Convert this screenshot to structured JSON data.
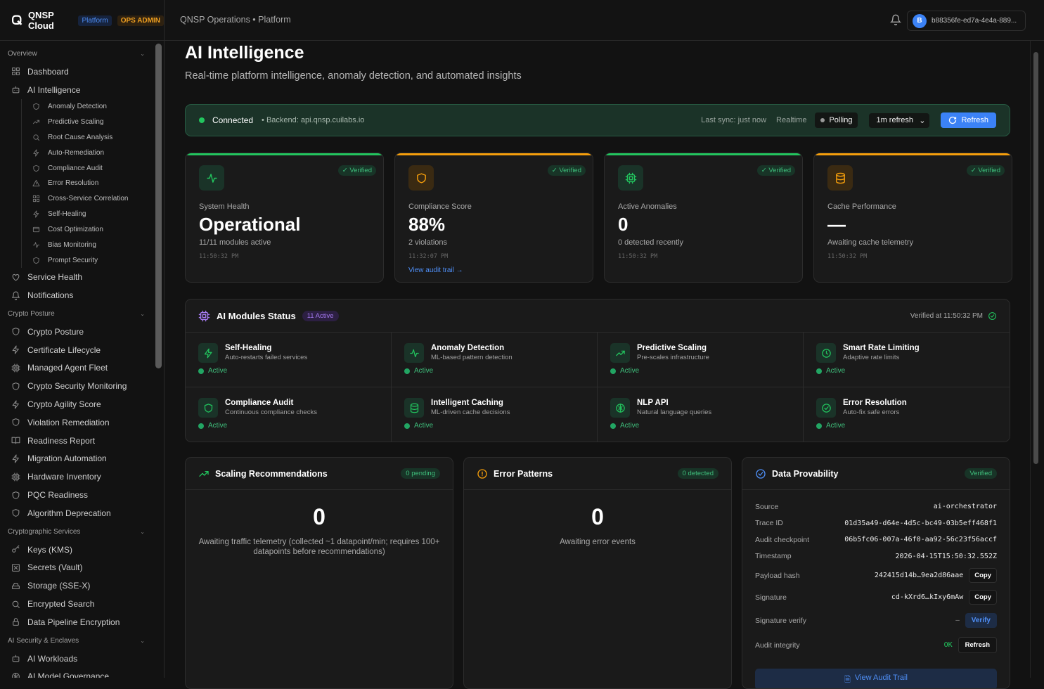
{
  "topbar": {
    "brand": "QNSP Cloud",
    "badge_platform": "Platform",
    "badge_admin": "OPS ADMIN",
    "breadcrumb": "QNSP Operations • Platform",
    "user_initial": "B",
    "user_id": "b88356fe-ed7a-4e4a-889..."
  },
  "sidebar": [
    {
      "section": "Overview",
      "items": [
        {
          "label": "Dashboard",
          "icon": "grid"
        },
        {
          "label": "AI Intelligence",
          "icon": "bot",
          "children": [
            {
              "label": "Anomaly Detection",
              "icon": "shield"
            },
            {
              "label": "Predictive Scaling",
              "icon": "trend"
            },
            {
              "label": "Root Cause Analysis",
              "icon": "search"
            },
            {
              "label": "Auto-Remediation",
              "icon": "bolt"
            },
            {
              "label": "Compliance Audit",
              "icon": "shield"
            },
            {
              "label": "Error Resolution",
              "icon": "alert"
            },
            {
              "label": "Cross-Service Correlation",
              "icon": "grid"
            },
            {
              "label": "Self-Healing",
              "icon": "bolt"
            },
            {
              "label": "Cost Optimization",
              "icon": "card"
            },
            {
              "label": "Bias Monitoring",
              "icon": "pulse"
            },
            {
              "label": "Prompt Security",
              "icon": "shield"
            }
          ]
        },
        {
          "label": "Service Health",
          "icon": "heart"
        },
        {
          "label": "Notifications",
          "icon": "bell"
        }
      ]
    },
    {
      "section": "Crypto Posture",
      "items": [
        {
          "label": "Crypto Posture",
          "icon": "shield"
        },
        {
          "label": "Certificate Lifecycle",
          "icon": "bolt"
        },
        {
          "label": "Managed Agent Fleet",
          "icon": "chip"
        },
        {
          "label": "Crypto Security Monitoring",
          "icon": "shield"
        },
        {
          "label": "Crypto Agility Score",
          "icon": "bolt"
        },
        {
          "label": "Violation Remediation",
          "icon": "shield"
        },
        {
          "label": "Readiness Report",
          "icon": "book"
        },
        {
          "label": "Migration Automation",
          "icon": "bolt"
        },
        {
          "label": "Hardware Inventory",
          "icon": "chip"
        },
        {
          "label": "PQC Readiness",
          "icon": "shield"
        },
        {
          "label": "Algorithm Deprecation",
          "icon": "shield"
        }
      ]
    },
    {
      "section": "Cryptographic Services",
      "items": [
        {
          "label": "Keys (KMS)",
          "icon": "key"
        },
        {
          "label": "Secrets (Vault)",
          "icon": "box"
        },
        {
          "label": "Storage (SSE-X)",
          "icon": "drive"
        },
        {
          "label": "Encrypted Search",
          "icon": "search"
        },
        {
          "label": "Data Pipeline Encryption",
          "icon": "lock"
        }
      ]
    },
    {
      "section": "AI Security & Enclaves",
      "items": [
        {
          "label": "AI Workloads",
          "icon": "bot"
        },
        {
          "label": "AI Model Governance",
          "icon": "brain"
        }
      ]
    }
  ],
  "page": {
    "title": "AI Intelligence",
    "subtitle": "Real-time platform intelligence, anomaly detection, and automated insights"
  },
  "status": {
    "connected": "Connected",
    "backend": "• Backend: api.qnsp.cuilabs.io",
    "last_sync": "Last sync: just now",
    "realtime": "Realtime",
    "polling": "Polling",
    "refresh_interval": "1m refresh",
    "refresh_button": "Refresh"
  },
  "cards": [
    {
      "label": "System Health",
      "value": "Operational",
      "sub": "11/11 modules active",
      "time": "11:50:32 PM",
      "badge": "Verified",
      "icon": "pulse",
      "accent": "#22c55e"
    },
    {
      "label": "Compliance Score",
      "value": "88%",
      "sub": "2 violations",
      "time": "11:32:07 PM",
      "badge": "Verified",
      "icon": "shield",
      "accent": "#f59e0b",
      "link": "View audit trail →"
    },
    {
      "label": "Active Anomalies",
      "value": "0",
      "sub": "0 detected recently",
      "time": "11:50:32 PM",
      "badge": "Verified",
      "icon": "chip",
      "accent": "#22c55e"
    },
    {
      "label": "Cache Performance",
      "value": "—",
      "sub": "Awaiting cache telemetry",
      "time": "11:50:32 PM",
      "badge": "Verified",
      "icon": "db",
      "accent": "#f59e0b"
    }
  ],
  "modules": {
    "title": "AI Modules Status",
    "badge": "11 Active",
    "verified_at": "Verified at 11:50:32 PM",
    "items": [
      {
        "name": "Self-Healing",
        "desc": "Auto-restarts failed services",
        "status": "Active",
        "icon": "bolt"
      },
      {
        "name": "Anomaly Detection",
        "desc": "ML-based pattern detection",
        "status": "Active",
        "icon": "pulse"
      },
      {
        "name": "Predictive Scaling",
        "desc": "Pre-scales infrastructure",
        "status": "Active",
        "icon": "trend"
      },
      {
        "name": "Smart Rate Limiting",
        "desc": "Adaptive rate limits",
        "status": "Active",
        "icon": "clock"
      },
      {
        "name": "Compliance Audit",
        "desc": "Continuous compliance checks",
        "status": "Active",
        "icon": "shield"
      },
      {
        "name": "Intelligent Caching",
        "desc": "ML-driven cache decisions",
        "status": "Active",
        "icon": "db"
      },
      {
        "name": "NLP API",
        "desc": "Natural language queries",
        "status": "Active",
        "icon": "brain"
      },
      {
        "name": "Error Resolution",
        "desc": "Auto-fix safe errors",
        "status": "Active",
        "icon": "checkc"
      }
    ]
  },
  "scaling": {
    "title": "Scaling Recommendations",
    "badge": "0 pending",
    "count": "0",
    "text": "Awaiting traffic telemetry (collected ~1 datapoint/min; requires 100+ datapoints before recommendations)"
  },
  "errors": {
    "title": "Error Patterns",
    "badge": "0 detected",
    "count": "0",
    "text": "Awaiting error events"
  },
  "provability": {
    "title": "Data Provability",
    "badge": "Verified",
    "rows": {
      "source": {
        "k": "Source",
        "v": "ai-orchestrator"
      },
      "trace": {
        "k": "Trace ID",
        "v": "01d35a49-d64e-4d5c-bc49-03b5eff468f1"
      },
      "checkpoint": {
        "k": "Audit checkpoint",
        "v": "06b5fc06-007a-46f0-aa92-56c23f56accf"
      },
      "timestamp": {
        "k": "Timestamp",
        "v": "2026-04-15T15:50:32.552Z"
      },
      "payload": {
        "k": "Payload hash",
        "v": "242415d14b…9ea2d86aae",
        "btn": "Copy"
      },
      "signature": {
        "k": "Signature",
        "v": "cd-kXrd6…kIxy6mAw",
        "btn": "Copy"
      },
      "sigverify": {
        "k": "Signature verify",
        "v": "–",
        "btn": "Verify"
      },
      "integrity": {
        "k": "Audit integrity",
        "v": "OK",
        "btn": "Refresh"
      }
    },
    "view_trail": "View Audit Trail"
  },
  "colors": {
    "accent": "#3b82f6",
    "success": "#22c55e",
    "warning": "#f59e0b",
    "purple": "#a57af0"
  }
}
